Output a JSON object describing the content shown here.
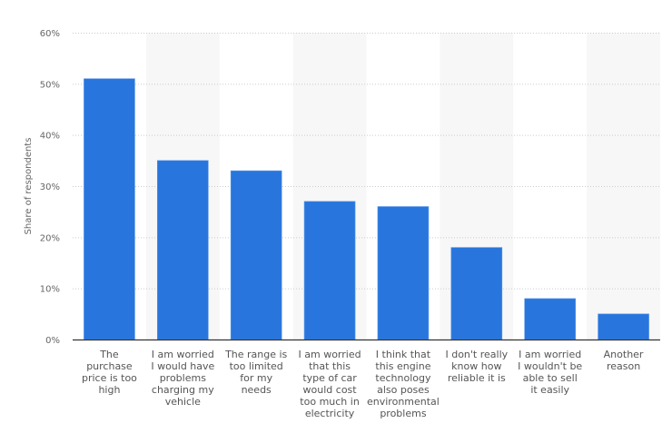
{
  "chart_data": {
    "type": "bar",
    "ylabel": "Share of respondents",
    "xlabel": "",
    "ylim": [
      0,
      60
    ],
    "yticks": [
      "0%",
      "10%",
      "20%",
      "30%",
      "40%",
      "50%",
      "60%"
    ],
    "ytick_values": [
      0,
      10,
      20,
      30,
      40,
      50,
      60
    ],
    "grid": true,
    "bar_color": "#2876dd",
    "categories": [
      [
        "The",
        "purchase",
        "price is too",
        "high"
      ],
      [
        "I am worried",
        "I would have",
        "problems",
        "charging my",
        "vehicle"
      ],
      [
        "The range is",
        "too limited",
        "for my",
        "needs"
      ],
      [
        "I am worried",
        "that this",
        "type of car",
        "would cost",
        "too much in",
        "electricity"
      ],
      [
        "I think that",
        "this engine",
        "technology",
        "also poses",
        "environmental",
        "problems"
      ],
      [
        "I don't really",
        "know how",
        "reliable it is"
      ],
      [
        "I am worried",
        "I wouldn't be",
        "able to sell",
        "it easily"
      ],
      [
        "Another",
        "reason"
      ]
    ],
    "values": [
      51,
      35,
      33,
      27,
      26,
      18,
      8,
      5
    ]
  }
}
